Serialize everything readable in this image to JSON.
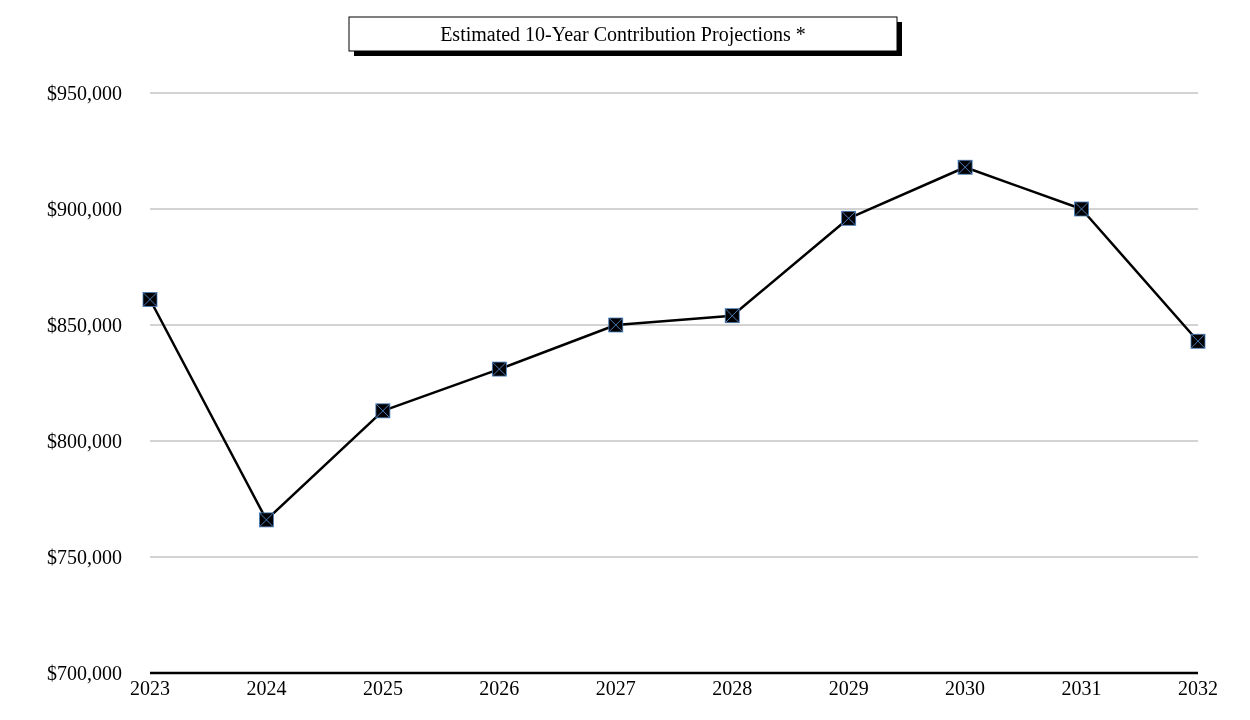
{
  "chart_data": {
    "type": "line",
    "title": "Estimated 10-Year Contribution Projections *",
    "categories": [
      "2023",
      "2024",
      "2025",
      "2026",
      "2027",
      "2028",
      "2029",
      "2030",
      "2031",
      "2032"
    ],
    "series": [
      {
        "color": "#000000",
        "values": [
          861000,
          766000,
          813000,
          831000,
          850000,
          854000,
          896000,
          918000,
          900000,
          843000
        ]
      }
    ],
    "ylim": [
      700000,
      950000
    ],
    "yticks": [
      {
        "value": 700000,
        "label": "$700,000"
      },
      {
        "value": 750000,
        "label": "$750,000"
      },
      {
        "value": 800000,
        "label": "$800,000"
      },
      {
        "value": 850000,
        "label": "$850,000"
      },
      {
        "value": 900000,
        "label": "$900,000"
      },
      {
        "value": 950000,
        "label": "$950,000"
      }
    ],
    "grid": "y",
    "marker": "square",
    "line_style": "solid"
  }
}
